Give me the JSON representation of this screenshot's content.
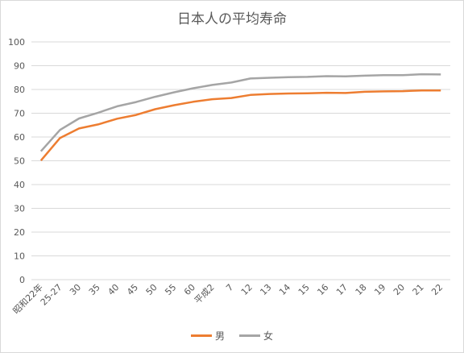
{
  "chart_data": {
    "type": "line",
    "title": "日本人の平均寿命",
    "xlabel": "",
    "ylabel": "",
    "ylim": [
      0,
      100
    ],
    "yticks": [
      0,
      10,
      20,
      30,
      40,
      50,
      60,
      70,
      80,
      90,
      100
    ],
    "grid": true,
    "legend_position": "bottom",
    "categories": [
      "昭和22年",
      "25-27",
      "30",
      "35",
      "40",
      "45",
      "50",
      "55",
      "60",
      "平成2",
      "7",
      "12",
      "13",
      "14",
      "15",
      "16",
      "17",
      "18",
      "19",
      "20",
      "21",
      "22"
    ],
    "series": [
      {
        "name": "男",
        "color": "#ed7d31",
        "values": [
          50.1,
          59.6,
          63.6,
          65.3,
          67.7,
          69.3,
          71.7,
          73.4,
          74.8,
          75.9,
          76.4,
          77.7,
          78.1,
          78.3,
          78.4,
          78.6,
          78.5,
          79.0,
          79.2,
          79.3,
          79.6,
          79.6
        ]
      },
      {
        "name": "女",
        "color": "#a5a5a5",
        "values": [
          54.0,
          63.0,
          67.8,
          70.2,
          72.9,
          74.7,
          76.9,
          78.8,
          80.5,
          81.9,
          82.9,
          84.6,
          84.9,
          85.2,
          85.3,
          85.6,
          85.5,
          85.8,
          86.0,
          86.0,
          86.4,
          86.3
        ]
      }
    ]
  }
}
